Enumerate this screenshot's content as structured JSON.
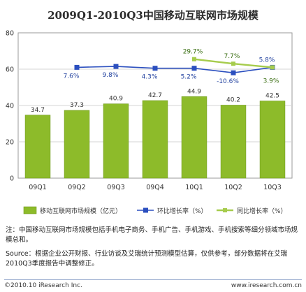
{
  "chart_data": {
    "type": "bar",
    "title": "2009Q1-2010Q3中国移动互联网市场规模",
    "categories": [
      "09Q1",
      "09Q2",
      "09Q3",
      "09Q4",
      "10Q1",
      "10Q2",
      "10Q3"
    ],
    "y_ticks": [
      "0",
      "20",
      "40",
      "60",
      "80"
    ],
    "ylim": [
      0,
      80
    ],
    "grid": true,
    "legend_position": "bottom",
    "series": [
      {
        "name": "移动互联网市场规模（亿元）",
        "kind": "bar",
        "color": "#8dbb2a",
        "values": [
          34.7,
          37.3,
          40.9,
          42.7,
          44.9,
          40.2,
          42.5
        ],
        "labels": [
          "34.7",
          "37.3",
          "40.9",
          "42.7",
          "44.9",
          "40.2",
          "42.5"
        ]
      },
      {
        "name": "环比增长率（%）",
        "kind": "line",
        "color": "#2b4fbf",
        "values": [
          null,
          61,
          61.5,
          60.5,
          60.5,
          58,
          61
        ],
        "labels": [
          null,
          "7.6%",
          "9.8%",
          "4.3%",
          "5.2%",
          "-10.6%",
          "5.8%"
        ]
      },
      {
        "name": "同比增长率（%）",
        "kind": "line",
        "color": "#a6cc4c",
        "values": [
          null,
          null,
          null,
          null,
          65.5,
          63,
          61
        ],
        "labels": [
          null,
          null,
          null,
          null,
          "29.7%",
          "7.7%",
          "3.9%"
        ]
      }
    ]
  },
  "notes": {
    "note": "注：中国移动互联网市场规模包括手机电子商务、手机广告、手机游戏、手机搜索等细分领域市场规模总和。",
    "source": "Source：根据企业公开财报、行业访谈及艾瑞统计预测模型估算，仅供参考，部分数据将在艾瑞2010Q3季度报告中调整修正。"
  },
  "footer": {
    "copyright": "©2010.10 iResearch Inc.",
    "website": "www.iresearch.com.cn"
  }
}
